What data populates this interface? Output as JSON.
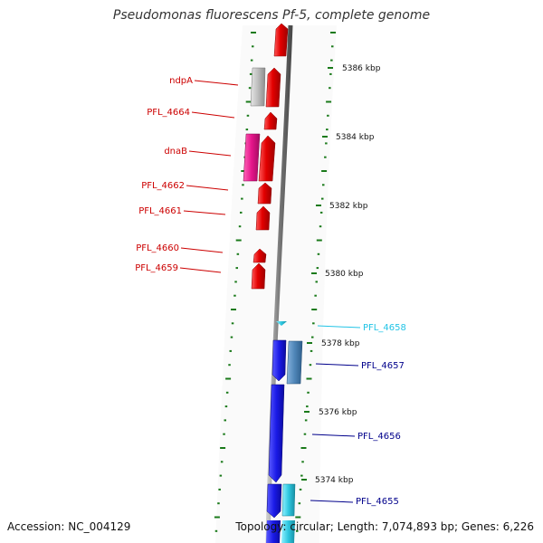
{
  "title": "Pseudomonas fluorescens Pf-5, complete genome",
  "footer": {
    "accession": "Accession: NC_004129",
    "summary": "Topology: circular; Length: 7,074,893 bp; Genes: 6,226"
  },
  "colors": {
    "forward_cds": "#e30000",
    "forward_highlight": "#e5148a",
    "forward_other": "#b4b4b4",
    "reverse_cds": "#1a1ae6",
    "reverse_other": "#4f86b8",
    "reverse_small": "#2ec7e0",
    "backbone": "#7a7a7a",
    "ticks": "#1a7a1a",
    "forward_label": "#cc0000",
    "reverse_label": "#00008b",
    "cyan_label": "#22c4e6"
  },
  "kbp_ticks": [
    "5386 kbp",
    "5384 kbp",
    "5382 kbp",
    "5380 kbp",
    "5378 kbp",
    "5376 kbp",
    "5374 kbp"
  ],
  "forward_labels": [
    "ndpA",
    "PFL_4664",
    "dnaB",
    "PFL_4662",
    "PFL_4661",
    "PFL_4660",
    "PFL_4659"
  ],
  "reverse_labels": [
    "PFL_4658",
    "PFL_4657",
    "PFL_4656",
    "PFL_4655"
  ]
}
